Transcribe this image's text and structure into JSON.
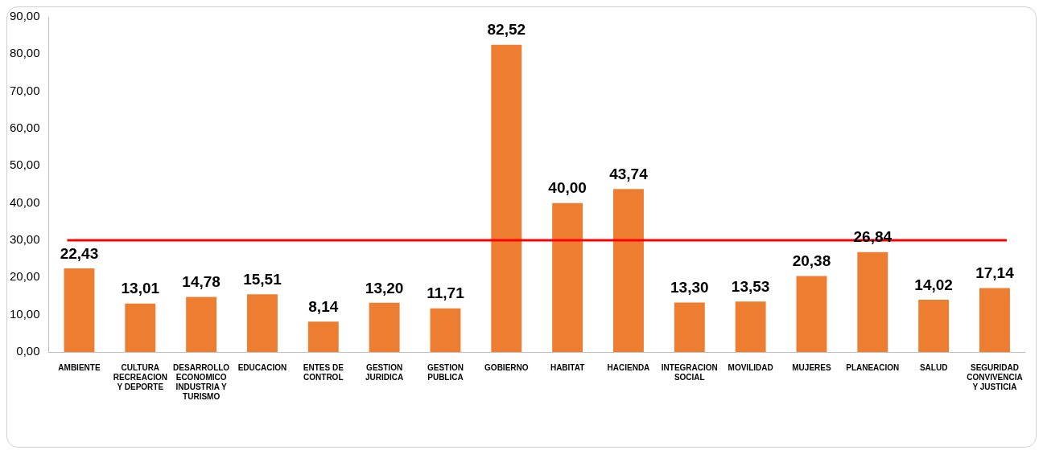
{
  "chart_data": {
    "type": "bar",
    "categories": [
      "AMBIENTE",
      "CULTURA RECREACION Y DEPORTE",
      "DESARROLLO ECONOMICO INDUSTRIA Y TURISMO",
      "EDUCACION",
      "ENTES DE CONTROL",
      "GESTION JURIDICA",
      "GESTION PUBLICA",
      "GOBIERNO",
      "HABITAT",
      "HACIENDA",
      "INTEGRACION SOCIAL",
      "MOVILIDAD",
      "MUJERES",
      "PLANEACION",
      "SALUD",
      "SEGURIDAD CONVIVENCIA Y JUSTICIA"
    ],
    "values": [
      22.43,
      13.01,
      14.78,
      15.51,
      8.14,
      13.2,
      11.71,
      82.52,
      40.0,
      43.74,
      13.3,
      13.53,
      20.38,
      26.84,
      14.02,
      17.14
    ],
    "value_labels": [
      "22,43",
      "13,01",
      "14,78",
      "15,51",
      "8,14",
      "13,20",
      "11,71",
      "82,52",
      "40,00",
      "43,74",
      "13,30",
      "13,53",
      "20,38",
      "26,84",
      "14,02",
      "17,14"
    ],
    "color": "#ed7d31",
    "ylim": [
      0,
      90
    ],
    "yticks": [
      {
        "value": 0,
        "label": "0,00"
      },
      {
        "value": 10,
        "label": "10,00"
      },
      {
        "value": 20,
        "label": "20,00"
      },
      {
        "value": 30,
        "label": "30,00"
      },
      {
        "value": 40,
        "label": "40,00"
      },
      {
        "value": 50,
        "label": "50,00"
      },
      {
        "value": 60,
        "label": "60,00"
      },
      {
        "value": 70,
        "label": "70,00"
      },
      {
        "value": 80,
        "label": "80,00"
      },
      {
        "value": 90,
        "label": "90,00"
      }
    ],
    "ref_lines": [
      {
        "axis": "y",
        "value": 30,
        "color": "#ff0000"
      }
    ],
    "grid": false,
    "legend": false
  }
}
